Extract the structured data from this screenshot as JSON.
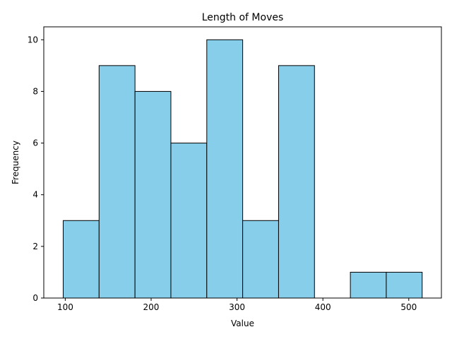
{
  "chart_data": {
    "type": "bar",
    "title": "Length of Moves",
    "xlabel": "Value",
    "ylabel": "Frequency",
    "bin_edges": [
      97.6,
      139.4,
      181.2,
      223.0,
      264.8,
      306.6,
      348.4,
      390.2,
      432.0,
      473.8,
      515.6
    ],
    "values": [
      3,
      9,
      8,
      6,
      10,
      3,
      9,
      0,
      1,
      1
    ],
    "xlim": [
      75,
      538
    ],
    "ylim": [
      0,
      10.5
    ],
    "xticks": [
      100,
      200,
      300,
      400,
      500
    ],
    "yticks": [
      0,
      2,
      4,
      6,
      8,
      10
    ],
    "bar_color": "#87ceeb",
    "edge_color": "#000000",
    "grid": false
  }
}
